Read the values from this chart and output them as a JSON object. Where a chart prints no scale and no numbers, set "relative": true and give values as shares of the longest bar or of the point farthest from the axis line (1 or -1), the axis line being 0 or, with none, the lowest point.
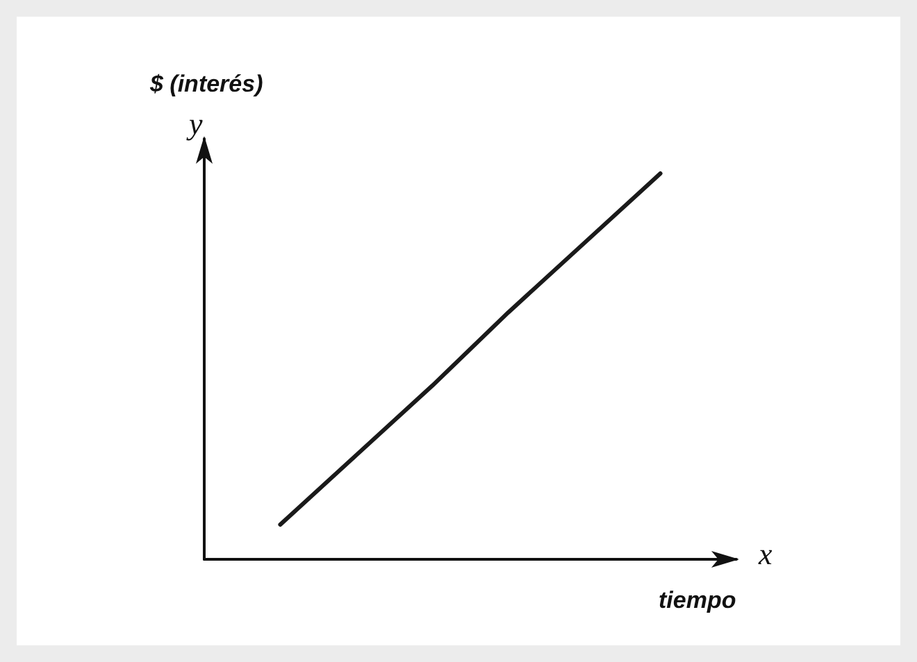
{
  "chart_data": {
    "type": "line",
    "relative": true,
    "ylabel": "$ (interés)",
    "xlabel": "tiempo",
    "annotations": [
      "y",
      "x"
    ],
    "categories": [
      null,
      null,
      null,
      null,
      null,
      null,
      null,
      null
    ],
    "series": [
      {
        "color": "#1a1a1a",
        "values": [
          null,
          0.09,
          0.27,
          0.45,
          0.64,
          0.82,
          1,
          null
        ]
      }
    ],
    "grid": false,
    "marker": "none",
    "line_style": "solid"
  }
}
